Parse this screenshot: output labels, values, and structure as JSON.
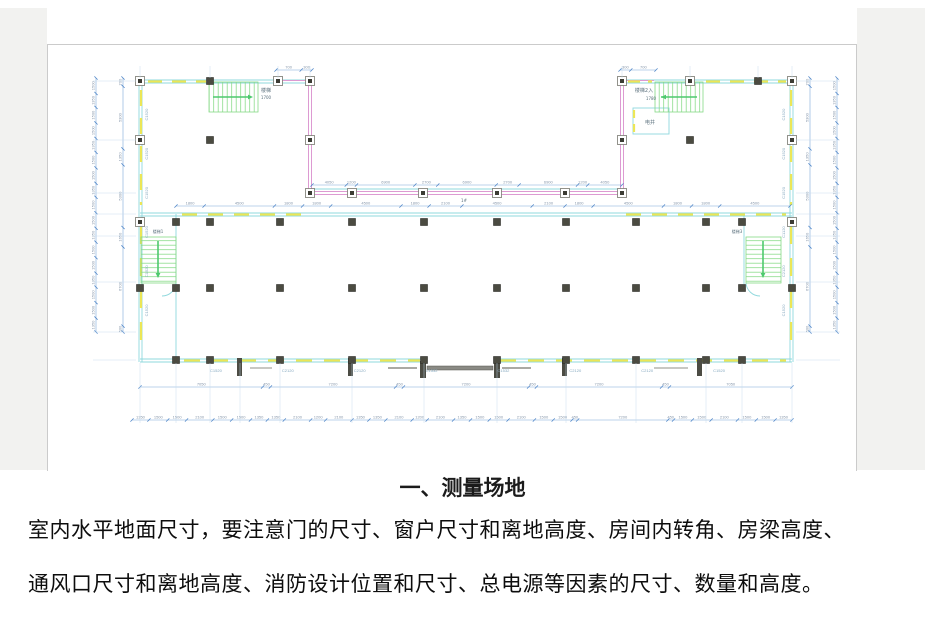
{
  "page": {
    "heading": "一、测量场地",
    "body_line1": "室内水平地面尺寸，要注意门的尺寸、窗户尺寸和离地高度、房间内转角、房梁高度、",
    "body_line2": "通风口尺寸和离地高度、消防设计位置和尺寸、总电源等因素的尺寸、数量和高度。"
  },
  "plan": {
    "room_labels": {
      "stair_top_left": "楼梯",
      "stair_top_left_width": "1700",
      "stair_top_right": "楼梯2入",
      "stair_top_right_width": "1780",
      "electric_shaft": "电井",
      "stair_bottom_left": "楼梯1",
      "stair_bottom_right": "楼梯3",
      "building_no": "1#"
    },
    "dim_chains": {
      "corridor_top": [
        "4050",
        "1200",
        "6900",
        "2700",
        "6900",
        "2700",
        "6900",
        "1200",
        "4050"
      ],
      "hall_top": [
        "1800",
        "4500",
        "1800",
        "1800",
        "4500",
        "1800",
        "2100",
        "4500",
        "2100",
        "1800",
        "4500",
        "1800",
        "1800",
        "4500"
      ],
      "bottom_mid": [
        "7050",
        "450",
        "7200",
        "450",
        "7200",
        "450",
        "7200",
        "450",
        "7050"
      ],
      "bottom_long": [
        "1350",
        "1500",
        "1500",
        "2100",
        "1500",
        "1500",
        "1350",
        "1350",
        "2100",
        "1200",
        "2100",
        "1350",
        "1350",
        "2100",
        "1200",
        "2100",
        "1350",
        "1500",
        "1500",
        "2100",
        "1500",
        "1500",
        "450",
        "7200",
        "450",
        "1500",
        "1500",
        "2100",
        "1500",
        "1500",
        "1350"
      ],
      "left_outer": [
        "1500",
        "1350",
        "1500",
        "1500",
        "1350",
        "1500",
        "1500",
        "1350",
        "1500",
        "1500",
        "1350",
        "1500",
        "1500",
        "1350",
        "1500",
        "1500",
        "1350"
      ],
      "left_inner": [
        "700",
        "5300",
        "1350",
        "5300",
        "1650",
        "6700",
        "500"
      ],
      "right_outer": [
        "1500",
        "1350",
        "1500",
        "1500",
        "1350",
        "1500",
        "1500",
        "1350",
        "1500",
        "1500",
        "1350",
        "1500",
        "1500",
        "1350",
        "1500",
        "1500",
        "1350"
      ],
      "right_inner": [
        "700",
        "5300",
        "1350",
        "5300",
        "1650",
        "6700",
        "500"
      ],
      "wing_left_stub": [
        "700",
        "300"
      ],
      "wing_right_stub": [
        "300",
        "700"
      ]
    },
    "window_codes": {
      "bottom": [
        "C1520",
        "C2120",
        "C2120",
        "C1532",
        "C1532",
        "C2120",
        "C2120",
        "C1520"
      ],
      "left": [
        "C1520",
        "C1520",
        "C1520",
        "C1520",
        "C1520",
        "C1520"
      ],
      "right": [
        "C1520",
        "C1520",
        "C1520",
        "C1120",
        "C2120",
        "C1520"
      ]
    },
    "colors": {
      "wall_cyan": "#8fd8dd",
      "partition_pink": "#dd9ad2",
      "window_yellow": "#ece656",
      "stairs_green": "#86d986",
      "dimension_blue": "#7fa8d8"
    }
  }
}
